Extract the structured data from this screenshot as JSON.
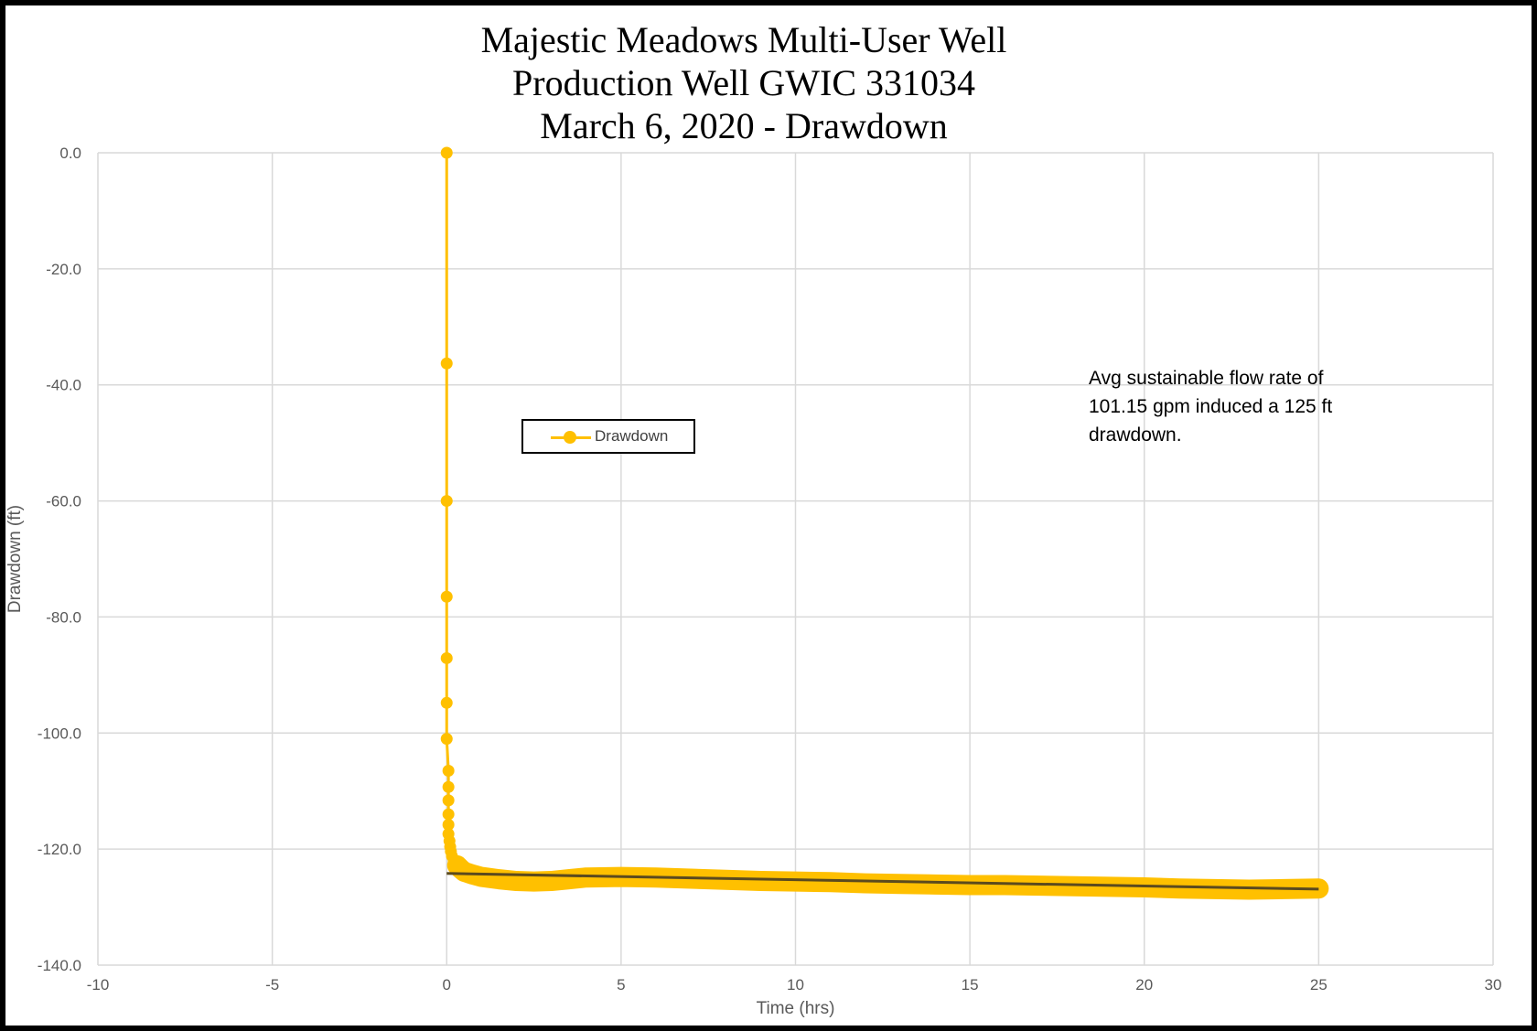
{
  "chart_data": {
    "type": "scatter",
    "title_lines": [
      "Majestic Meadows Multi-User Well",
      "Production Well GWIC 331034",
      "March 6, 2020 - Drawdown"
    ],
    "xlabel": "Time (hrs)",
    "ylabel": "Drawdown (ft)",
    "xlim": [
      -10,
      30
    ],
    "ylim": [
      -140,
      0
    ],
    "x_ticks": [
      "-10",
      "-5",
      "0",
      "5",
      "10",
      "15",
      "20",
      "25",
      "30"
    ],
    "y_ticks": [
      "0.0",
      "-20.0",
      "-40.0",
      "-60.0",
      "-80.0",
      "-100.0",
      "-120.0",
      "-140.0"
    ],
    "grid": true,
    "legend_position": "upper-left-center",
    "series": [
      {
        "name": "Drawdown",
        "color": "#FFC000",
        "marker": "circle",
        "line": true,
        "x": [
          0.0,
          0.0,
          0.0,
          0.0,
          0.0,
          0.0,
          0.0,
          0.05,
          0.05,
          0.05,
          0.05,
          0.05,
          0.05,
          0.08,
          0.1,
          0.12,
          0.15,
          0.2,
          0.3,
          0.4,
          0.5,
          0.75,
          1.0,
          1.5,
          2.0,
          2.5,
          3.0,
          3.5,
          4.0,
          5.0,
          6.0,
          7.0,
          8.0,
          9.0,
          10.0,
          11.0,
          12.0,
          13.0,
          14.0,
          15.0,
          16.0,
          17.0,
          18.0,
          19.0,
          20.0,
          21.0,
          22.0,
          23.0,
          24.0,
          25.0
        ],
        "y": [
          0.0,
          -36.3,
          -60.0,
          -76.5,
          -87.1,
          -94.8,
          -101.0,
          -106.5,
          -109.3,
          -111.6,
          -114.0,
          -115.8,
          -117.4,
          -118.6,
          -119.6,
          -120.4,
          -121.2,
          -122.0,
          -122.8,
          -123.4,
          -123.9,
          -124.4,
          -124.8,
          -125.2,
          -125.5,
          -125.6,
          -125.5,
          -125.2,
          -124.9,
          -124.8,
          -124.9,
          -125.1,
          -125.3,
          -125.5,
          -125.6,
          -125.7,
          -125.9,
          -126.0,
          -126.1,
          -126.2,
          -126.2,
          -126.3,
          -126.4,
          -126.5,
          -126.6,
          -126.8,
          -126.9,
          -127.0,
          -126.9,
          -126.8
        ]
      }
    ],
    "trendline": {
      "color": "#5B4A1E",
      "x": [
        0,
        25
      ],
      "y": [
        -124.2,
        -126.9
      ]
    },
    "annotation_lines": [
      "Avg sustainable flow rate of",
      "101.15 gpm induced a 125 ft",
      "drawdown."
    ]
  }
}
